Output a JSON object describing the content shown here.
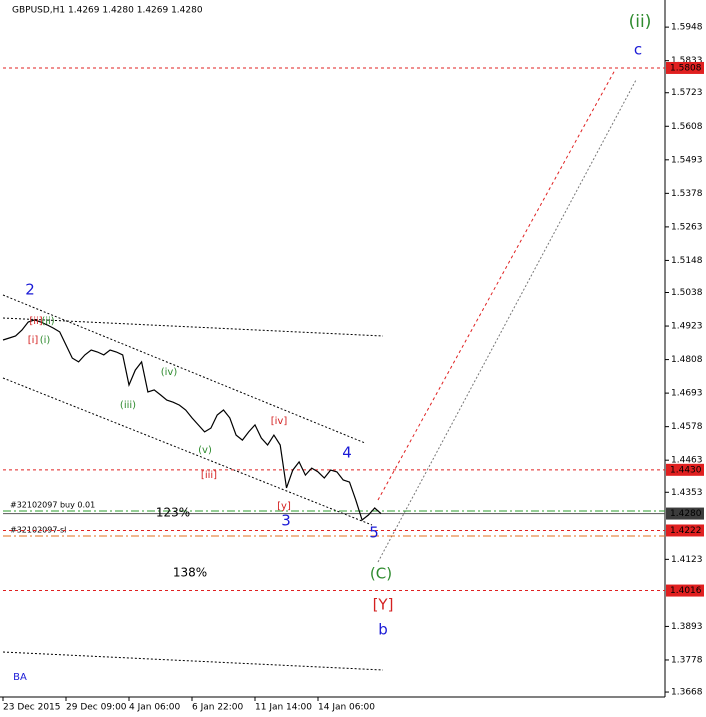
{
  "chart_data": {
    "type": "line",
    "title": "GBPUSD,H1  1.4269 1.4280 1.4269 1.4280",
    "categories": [
      "23 Dec 2015",
      null,
      null,
      null,
      null,
      null,
      null,
      null,
      null,
      null,
      "29 Dec 09:00",
      null,
      null,
      null,
      null,
      null,
      null,
      null,
      null,
      null,
      "4 Jan 06:00",
      null,
      null,
      null,
      null,
      null,
      null,
      null,
      null,
      null,
      "6 Jan 22:00",
      null,
      null,
      null,
      null,
      null,
      null,
      null,
      null,
      null,
      "11 Jan 14:00",
      null,
      null,
      null,
      null,
      null,
      null,
      null,
      null,
      null,
      "14 Jan 06:00",
      null,
      null,
      null,
      null,
      null,
      null,
      null,
      null,
      null,
      null
    ],
    "series": [
      {
        "name": "GBPUSD",
        "color": "#000000",
        "values": [
          1.4875,
          1.4882,
          1.4889,
          1.4909,
          1.4937,
          1.4944,
          1.4937,
          1.4927,
          1.4916,
          1.4903,
          1.4858,
          1.4813,
          1.48,
          1.4824,
          1.4841,
          1.4834,
          1.4824,
          1.4841,
          1.4834,
          1.4824,
          1.4721,
          1.4772,
          1.48,
          1.4697,
          1.4704,
          1.4687,
          1.4669,
          1.4662,
          1.4652,
          1.4635,
          1.4608,
          1.4584,
          1.456,
          1.4573,
          1.4618,
          1.4635,
          1.4608,
          1.4549,
          1.4532,
          1.456,
          1.4584,
          1.4539,
          1.4515,
          1.4549,
          1.4515,
          1.4368,
          1.4429,
          1.4457,
          1.4412,
          1.4436,
          1.4423,
          1.4402,
          1.4429,
          1.4423,
          1.4395,
          1.4388,
          1.4326,
          1.4258,
          1.4275,
          1.4299,
          1.428
        ]
      }
    ],
    "ylim": [
      1.3651,
      1.6041
    ],
    "yticks": [
      1.5948,
      1.5833,
      1.5723,
      1.5608,
      1.5493,
      1.5378,
      1.5263,
      1.5148,
      1.5038,
      1.4923,
      1.4808,
      1.4693,
      1.4578,
      1.4463,
      1.4353,
      1.4123,
      1.3893,
      1.3778,
      1.3668
    ],
    "levels": [
      {
        "value": 1.5808,
        "label": "1.5808",
        "color": "#e02020",
        "box": "#e02020",
        "dash": "3,3"
      },
      {
        "value": 1.443,
        "label": "1.4430",
        "color": "#e02020",
        "box": "#e02020",
        "dash": "3,3"
      },
      {
        "value": 1.428,
        "label": "1.4280",
        "color": "#555555",
        "box": "#3c3c3c",
        "dash": "none"
      },
      {
        "value": 1.4222,
        "label": "1.4222",
        "color": "#e02020",
        "box": "#e02020",
        "dash": "3,3"
      },
      {
        "value": 1.4016,
        "label": "1.4016",
        "color": "#e02020",
        "box": "#e02020",
        "dash": "3,3"
      }
    ],
    "orders": [
      {
        "label": "#32102097 buy 0.01",
        "value": 1.4289,
        "color": "#2e9e2e"
      },
      {
        "label": "#32102097 sl",
        "value": 1.4203,
        "color": "#e07020"
      }
    ],
    "annotations": [
      {
        "text": "(ii)",
        "color": "#2e8b2e"
      },
      {
        "text": "c",
        "color": "#1a1ad6"
      },
      {
        "text": "2",
        "color": "#1a1ad6"
      },
      {
        "text": "[ii]",
        "color": "#d42020"
      },
      {
        "text": "(ii)",
        "color": "#2e8b2e"
      },
      {
        "text": "[i]",
        "color": "#d42020"
      },
      {
        "text": "(i)",
        "color": "#2e8b2e"
      },
      {
        "text": "(iv)",
        "color": "#2e8b2e"
      },
      {
        "text": "(iii)",
        "color": "#2e8b2e"
      },
      {
        "text": "[iv]",
        "color": "#d42020"
      },
      {
        "text": "(v)",
        "color": "#2e8b2e"
      },
      {
        "text": "4",
        "color": "#1a1ad6"
      },
      {
        "text": "[iii]",
        "color": "#d42020"
      },
      {
        "text": "123%",
        "color": "#000000"
      },
      {
        "text": "[y]",
        "color": "#d42020"
      },
      {
        "text": "3",
        "color": "#1a1ad6"
      },
      {
        "text": "5",
        "color": "#1a1ad6"
      },
      {
        "text": "138%",
        "color": "#000000"
      },
      {
        "text": "(C)",
        "color": "#2e8b2e"
      },
      {
        "text": "[Y]",
        "color": "#d42020"
      },
      {
        "text": "b",
        "color": "#1a1ad6"
      },
      {
        "text": "BA",
        "color": "#1a1ad6"
      }
    ]
  }
}
